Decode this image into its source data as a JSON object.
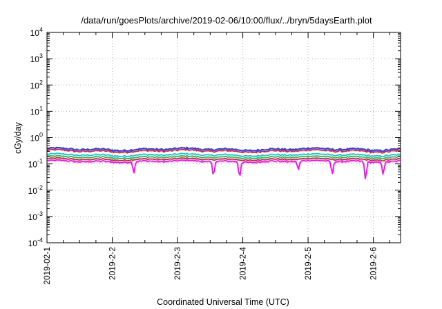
{
  "chart_data": {
    "type": "line",
    "title": "/data/run/goesPlots/archive/2019-02-06/10:00/flux/../bryn/5daysEarth.plot",
    "xlabel": "Coordinated Universal Time (UTC)",
    "ylabel": "cGy/day",
    "y_scale": "log",
    "ylim": [
      0.0001,
      10000
    ],
    "y_ticks": [
      {
        "value": 0.0001,
        "base": "10",
        "exp": "-4"
      },
      {
        "value": 0.001,
        "base": "10",
        "exp": "-3"
      },
      {
        "value": 0.01,
        "base": "10",
        "exp": "-2"
      },
      {
        "value": 0.1,
        "base": "10",
        "exp": "-1"
      },
      {
        "value": 1,
        "base": "10",
        "exp": "0"
      },
      {
        "value": 10,
        "base": "10",
        "exp": "1"
      },
      {
        "value": 100,
        "base": "10",
        "exp": "2"
      },
      {
        "value": 1000,
        "base": "10",
        "exp": "3"
      },
      {
        "value": 10000,
        "base": "10",
        "exp": "4"
      }
    ],
    "xlim": [
      "2019-02-01T00:00",
      "2019-02-06T10:00"
    ],
    "x_ticks": [
      "2019-02-1",
      "2019-2-2",
      "2019-2-3",
      "2019-2-4",
      "2019-2-5",
      "2019-2-6"
    ],
    "grid": true,
    "series": [
      {
        "color": "#ff00ff",
        "base": 0.125,
        "amplitude": 0.1,
        "dips": [
          [
            1.33,
            0.045
          ],
          [
            2.55,
            0.035
          ],
          [
            2.95,
            0.03
          ],
          [
            3.85,
            0.06
          ],
          [
            4.37,
            0.04
          ],
          [
            4.88,
            0.025
          ],
          [
            5.15,
            0.04
          ]
        ]
      },
      {
        "color": "#e8104a",
        "base": 0.15,
        "amplitude": 0.1,
        "dips": []
      },
      {
        "color": "#3cb043",
        "base": 0.18,
        "amplitude": 0.1,
        "dips": []
      },
      {
        "color": "#00d0d0",
        "base": 0.22,
        "amplitude": 0.11,
        "dips": []
      },
      {
        "color": "#dd2222",
        "base": 0.31,
        "amplitude": 0.12,
        "dips": []
      },
      {
        "color": "#3a3aee",
        "base": 0.36,
        "amplitude": 0.12,
        "dips": []
      }
    ]
  }
}
